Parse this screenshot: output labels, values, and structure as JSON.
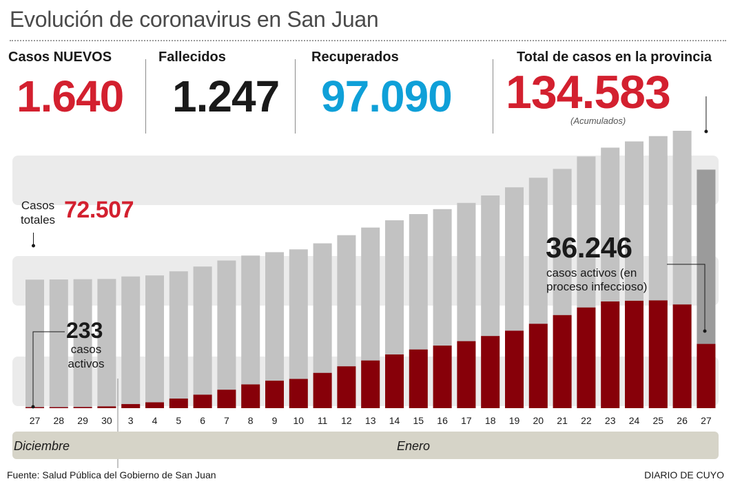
{
  "title": "Evolución de coronavirus en San Juan",
  "stats": {
    "nuevos": {
      "label": "Casos NUEVOS",
      "value": "1.640",
      "color": "#d3202f"
    },
    "fallecidos": {
      "label": "Fallecidos",
      "value": "1.247",
      "color": "#1a1a1a"
    },
    "recuperados": {
      "label": "Recuperados",
      "value": "97.090",
      "color": "#0fa0d8"
    },
    "total": {
      "label": "Total de casos en la provincia",
      "value": "134.583",
      "note": "(Acumulados)",
      "color": "#d3202f"
    }
  },
  "annotations": {
    "start_total_label": "Casos\ntotales",
    "start_total_value": "72.507",
    "start_active_value": "233",
    "start_active_label": "casos\nactivos",
    "end_active_value": "36.246",
    "end_active_label": "casos activos (en\nproceso infeccioso)"
  },
  "months": [
    "Diciembre",
    "Enero"
  ],
  "colors": {
    "total_bar": "#c2c2c2",
    "total_bar_last": "#9b9b9b",
    "active_bar": "#870009",
    "band": "#ebebeb"
  },
  "chart_data": {
    "type": "bar",
    "categories": [
      "27",
      "28",
      "29",
      "30",
      "3",
      "4",
      "5",
      "6",
      "7",
      "8",
      "9",
      "10",
      "11",
      "12",
      "13",
      "14",
      "15",
      "16",
      "17",
      "18",
      "19",
      "20",
      "21",
      "22",
      "23",
      "24",
      "25",
      "26",
      "27"
    ],
    "series": [
      {
        "name": "Casos totales",
        "values": [
          72507,
          72600,
          72750,
          72900,
          74300,
          74900,
          77200,
          79900,
          83300,
          86100,
          88000,
          89600,
          93000,
          97600,
          101900,
          106000,
          109500,
          112300,
          115800,
          120000,
          124600,
          130000,
          135000,
          142000,
          147000,
          150500,
          153500,
          156500,
          134583
        ]
      },
      {
        "name": "casos activos",
        "values": [
          233,
          400,
          650,
          1000,
          2300,
          3300,
          5400,
          7600,
          10400,
          13400,
          15500,
          16500,
          19900,
          23600,
          26900,
          30300,
          33100,
          35300,
          37800,
          40700,
          43700,
          47600,
          52500,
          56800,
          60200,
          60600,
          60800,
          58500,
          36246
        ]
      }
    ],
    "ylim": [
      0,
      160000
    ],
    "grid": true
  },
  "footer": {
    "source": "Fuente: Salud Pública del Gobierno de San Juan",
    "credit": "DIARIO DE CUYO"
  }
}
